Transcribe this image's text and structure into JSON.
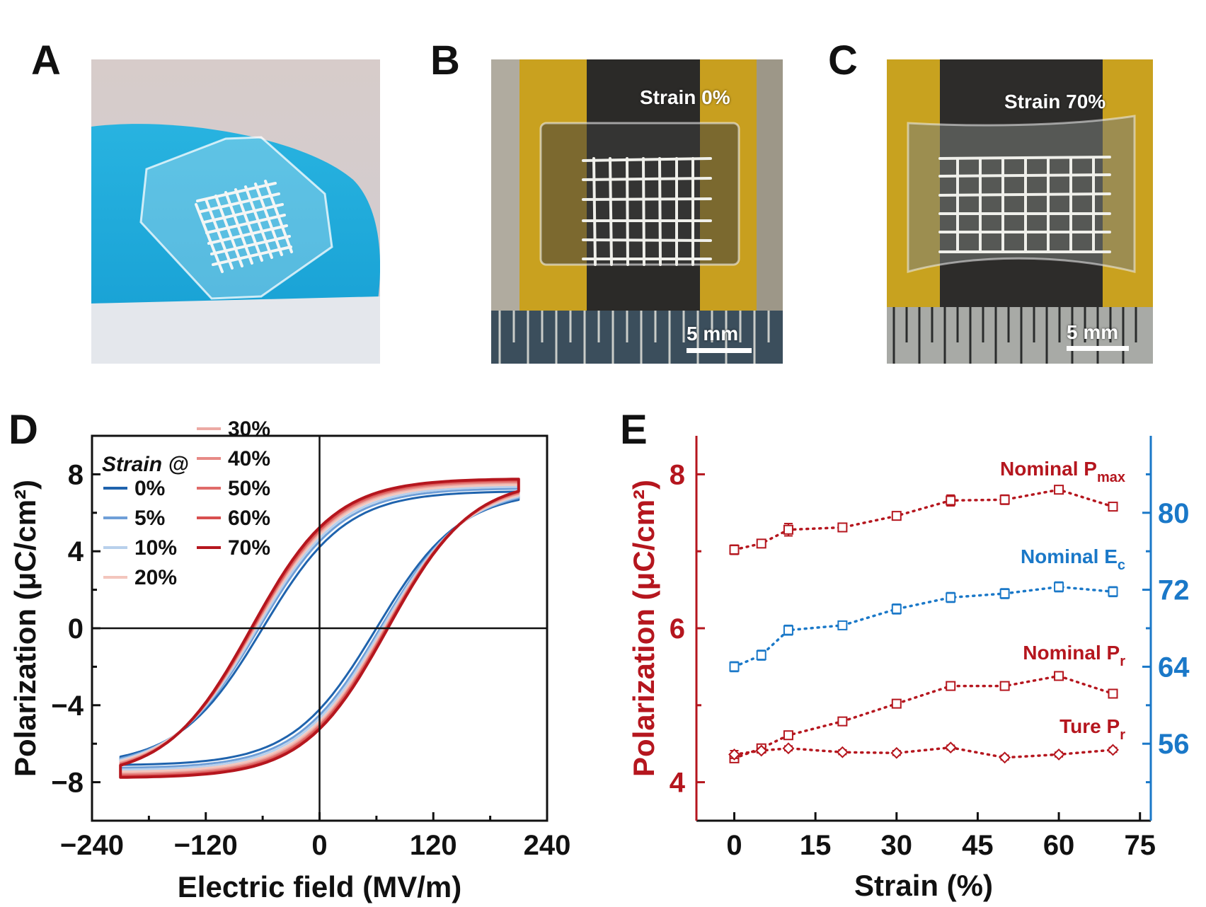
{
  "panels": {
    "a": {
      "letter": "A"
    },
    "b": {
      "letter": "B",
      "strain_label": "Strain 0%",
      "scale_label": "5 mm"
    },
    "c": {
      "letter": "C",
      "strain_label": "Strain 70%",
      "scale_label": "5 mm"
    },
    "d": {
      "letter": "D"
    },
    "e": {
      "letter": "E"
    }
  },
  "colors": {
    "blue_dark": "#1f63ad",
    "red_dark": "#b5161e",
    "axis_blue": "#1a78c8",
    "axis_red": "#b5161e"
  },
  "chart_data": [
    {
      "id": "D",
      "type": "line",
      "xlabel": "Electric field (MV/m)",
      "ylabel": "Polarization (μC/cm²)",
      "xlim": [
        -240,
        240
      ],
      "ylim": [
        -10,
        10
      ],
      "xticks": [
        -240,
        -120,
        0,
        120,
        240
      ],
      "xtick_labels": [
        "−240",
        "−120",
        "0",
        "120",
        "240"
      ],
      "yticks": [
        -8,
        -4,
        0,
        4,
        8
      ],
      "ytick_labels": [
        "−8",
        "−4",
        "0",
        "4",
        "8"
      ],
      "legend_title": "Strain @",
      "legend_position": "top-left",
      "series": [
        {
          "name": "0%",
          "color": "#1f63ad",
          "Emax": 210,
          "Pmax": 7.1,
          "Pr": 4.3,
          "Ec": 60,
          "Pcross": 3.3,
          "Ecross": 112,
          "width": 3
        },
        {
          "name": "5%",
          "color": "#6f9fd8",
          "Emax": 210,
          "Pmax": 7.25,
          "Pr": 4.65,
          "Ec": 64,
          "Pcross": 3.1,
          "Ecross": 114,
          "width": 3
        },
        {
          "name": "10%",
          "color": "#b8d0ec",
          "Emax": 210,
          "Pmax": 7.35,
          "Pr": 4.85,
          "Ec": 66,
          "Pcross": 3.0,
          "Ecross": 116,
          "width": 3
        },
        {
          "name": "20%",
          "color": "#f3c6bd",
          "Emax": 210,
          "Pmax": 7.45,
          "Pr": 5.0,
          "Ec": 68,
          "Pcross": 2.8,
          "Ecross": 117,
          "width": 3
        },
        {
          "name": "30%",
          "color": "#ecaaa4",
          "Emax": 210,
          "Pmax": 7.55,
          "Pr": 5.05,
          "Ec": 69,
          "Pcross": 2.7,
          "Ecross": 118,
          "width": 3
        },
        {
          "name": "40%",
          "color": "#e78a86",
          "Emax": 210,
          "Pmax": 7.6,
          "Pr": 5.1,
          "Ec": 70,
          "Pcross": 2.6,
          "Ecross": 119,
          "width": 3
        },
        {
          "name": "50%",
          "color": "#e06b69",
          "Emax": 210,
          "Pmax": 7.65,
          "Pr": 5.15,
          "Ec": 70,
          "Pcross": 2.55,
          "Ecross": 120,
          "width": 3
        },
        {
          "name": "60%",
          "color": "#d84f4f",
          "Emax": 210,
          "Pmax": 7.7,
          "Pr": 5.2,
          "Ec": 71,
          "Pcross": 2.5,
          "Ecross": 121,
          "width": 3
        },
        {
          "name": "70%",
          "color": "#b5161e",
          "Emax": 210,
          "Pmax": 7.75,
          "Pr": 5.25,
          "Ec": 72,
          "Pcross": 2.45,
          "Ecross": 122,
          "width": 3
        }
      ]
    },
    {
      "id": "E",
      "type": "scatter",
      "xlabel": "Strain (%)",
      "ylabel": "Polarization (μC/cm²)",
      "xlim": [
        -7,
        77
      ],
      "ylim": [
        3.5,
        8.5
      ],
      "y2lim": [
        48,
        88
      ],
      "xticks": [
        0,
        15,
        30,
        45,
        60,
        75
      ],
      "yticks": [
        4,
        6,
        8
      ],
      "y2ticks": [
        56,
        64,
        72,
        80
      ],
      "x": [
        0,
        5,
        10,
        20,
        30,
        40,
        50,
        60,
        70
      ],
      "series": [
        {
          "name": "Nominal P",
          "sub": "max",
          "axis": "left",
          "color": "#b5161e",
          "marker": "square",
          "values": [
            7.02,
            7.1,
            7.28,
            7.31,
            7.46,
            7.66,
            7.67,
            7.8,
            7.58
          ],
          "err": [
            0.06,
            0.04,
            0.08,
            0.05,
            0.04,
            0.07,
            0.06,
            0.03,
            0.04
          ]
        },
        {
          "name": "Nominal E",
          "sub": "c",
          "axis": "right",
          "color": "#1a78c8",
          "marker": "square",
          "values": [
            64.0,
            65.2,
            67.8,
            68.3,
            70.0,
            71.2,
            71.6,
            72.3,
            71.8
          ],
          "err": [
            0.5,
            0.5,
            0.5,
            0.2,
            0.5,
            0.5,
            0.5,
            0.5,
            0.5
          ]
        },
        {
          "name": "Nominal P",
          "sub": "r",
          "axis": "left",
          "color": "#b5161e",
          "marker": "square",
          "values": [
            4.31,
            4.44,
            4.61,
            4.79,
            5.02,
            5.25,
            5.25,
            5.38,
            5.15
          ],
          "err": [
            0.04,
            0.03,
            0.03,
            0.03,
            0.03,
            0.03,
            0.03,
            0.03,
            0.03
          ]
        },
        {
          "name": "Ture P",
          "sub": "r",
          "axis": "left",
          "color": "#b5161e",
          "marker": "diamond",
          "values": [
            4.36,
            4.41,
            4.44,
            4.39,
            4.38,
            4.45,
            4.32,
            4.36,
            4.42
          ],
          "err": [
            0.05,
            0.03,
            0.03,
            0.03,
            0.03,
            0.03,
            0.03,
            0.03,
            0.03
          ]
        }
      ]
    }
  ]
}
